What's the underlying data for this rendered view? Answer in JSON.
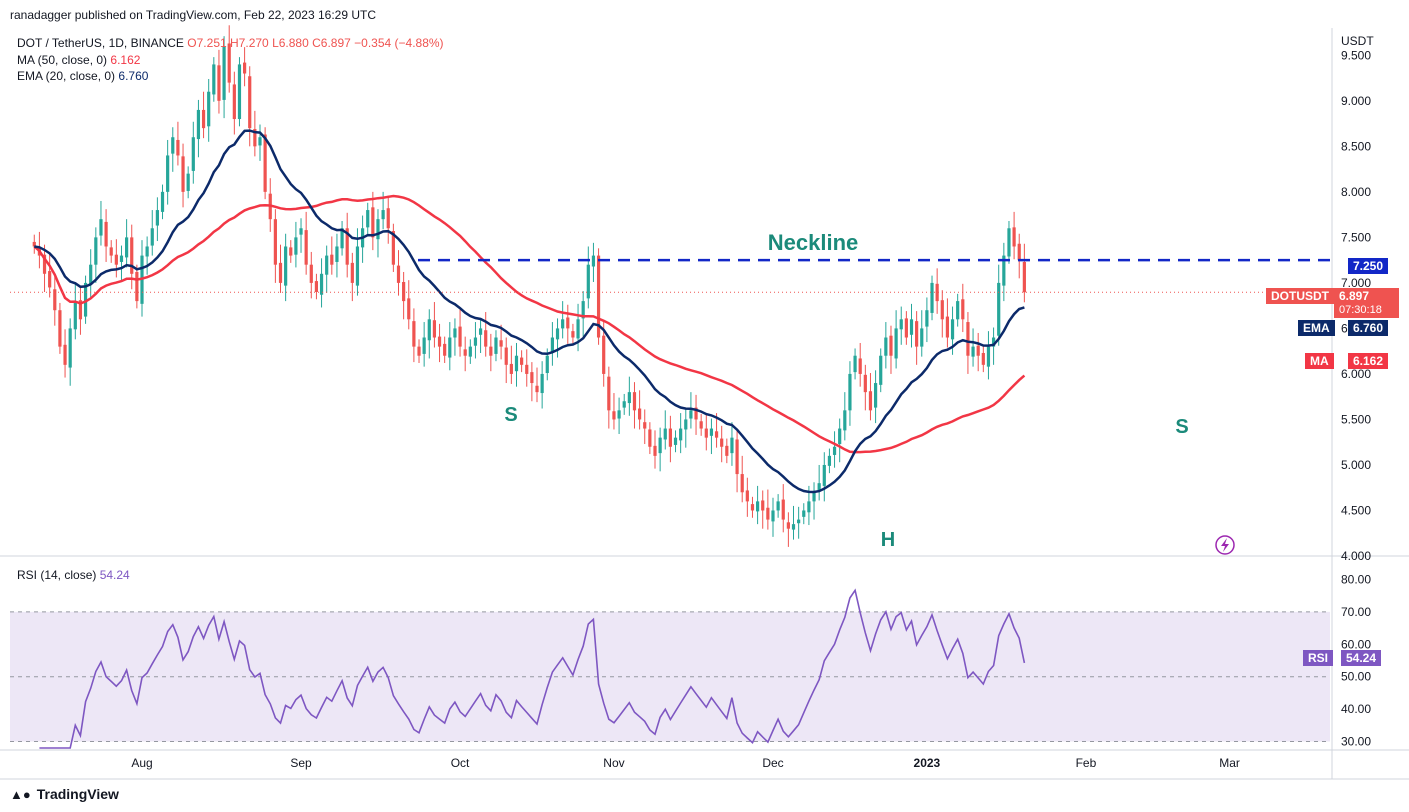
{
  "publish_line": "ranadagger published on TradingView.com, Feb 22, 2023 16:29 UTC",
  "ticker": {
    "symbol": "DOT / TetherUS, 1D, BINANCE",
    "open": "O7.251",
    "high": "H7.270",
    "low": "L6.880",
    "close": "C6.897",
    "change": "−0.354 (−4.88%)"
  },
  "ma_legend": {
    "label": "MA (50, close, 0)",
    "value": "6.162"
  },
  "ema_legend": {
    "label": "EMA (20, close, 0)",
    "value": "6.760"
  },
  "rsi_legend": {
    "label": "RSI (14, close)",
    "value": "54.24"
  },
  "currency": "USDT",
  "footer": {
    "brand": "TradingView"
  },
  "colors": {
    "up": "#26a69a",
    "down": "#ef5350",
    "ma": "#f23645",
    "ema": "#0c2a6a",
    "rsi": "#7e57c2",
    "band": "#ede7f6",
    "neckline": "#1227c7",
    "annot": "#1b8a7a"
  },
  "price_labels": {
    "neckline": "7.250",
    "current": {
      "symbol": "DOTUSDT",
      "price": "6.897",
      "timer": "07:30:18"
    },
    "ema": {
      "name": "EMA",
      "value": "6.760"
    },
    "ma": {
      "name": "MA",
      "value": "6.162"
    },
    "rsi": {
      "name": "RSI",
      "value": "54.24"
    }
  },
  "annotations": {
    "neckline": "Neckline",
    "left_shoulder": "S",
    "head": "H",
    "right_shoulder": "S"
  },
  "chart_data": {
    "type": "candlestick",
    "ylim": [
      4.0,
      9.8
    ],
    "yticks": [
      "9.500",
      "9.000",
      "8.500",
      "8.000",
      "7.500",
      "7.000",
      "6.500",
      "6.000",
      "5.500",
      "5.000",
      "4.500",
      "4.000"
    ],
    "ytick_values": [
      9.5,
      9.0,
      8.5,
      8.0,
      7.5,
      7.0,
      6.5,
      6.0,
      5.5,
      5.0,
      4.5,
      4.0
    ],
    "xtick_labels": [
      "Aug",
      "Sep",
      "Oct",
      "Nov",
      "Dec",
      "2023",
      "Feb",
      "Mar"
    ],
    "xtick_days": [
      0,
      31,
      62,
      92,
      123,
      153,
      184,
      212
    ],
    "first_candle_day": -21,
    "neckline_level": 7.25,
    "closes": [
      7.4,
      7.3,
      7.1,
      6.95,
      6.7,
      6.3,
      6.1,
      6.5,
      6.8,
      6.6,
      7.0,
      7.2,
      7.5,
      7.7,
      7.4,
      7.3,
      7.2,
      7.3,
      7.5,
      7.1,
      6.8,
      7.3,
      7.4,
      7.6,
      7.8,
      8.0,
      8.4,
      8.6,
      8.4,
      8.0,
      8.2,
      8.6,
      8.9,
      8.7,
      9.1,
      9.4,
      9.0,
      9.6,
      9.2,
      8.8,
      9.4,
      9.3,
      8.7,
      8.5,
      8.6,
      8.0,
      7.7,
      7.2,
      7.0,
      7.4,
      7.3,
      7.5,
      7.6,
      7.2,
      7.0,
      6.9,
      7.1,
      7.3,
      7.2,
      7.4,
      7.6,
      7.2,
      7.0,
      7.4,
      7.6,
      7.8,
      7.5,
      7.7,
      7.8,
      7.6,
      7.2,
      7.0,
      6.8,
      6.6,
      6.3,
      6.2,
      6.4,
      6.6,
      6.4,
      6.3,
      6.2,
      6.4,
      6.5,
      6.3,
      6.2,
      6.3,
      6.4,
      6.5,
      6.3,
      6.2,
      6.4,
      6.3,
      6.1,
      6.0,
      6.2,
      6.1,
      6.0,
      5.9,
      5.8,
      6.0,
      6.2,
      6.4,
      6.5,
      6.6,
      6.5,
      6.4,
      6.6,
      6.8,
      7.2,
      7.3,
      6.4,
      6.0,
      5.6,
      5.5,
      5.6,
      5.7,
      5.8,
      5.6,
      5.5,
      5.4,
      5.2,
      5.1,
      5.3,
      5.4,
      5.2,
      5.3,
      5.4,
      5.5,
      5.6,
      5.5,
      5.4,
      5.3,
      5.4,
      5.3,
      5.2,
      5.1,
      5.3,
      4.9,
      4.7,
      4.6,
      4.5,
      4.6,
      4.5,
      4.4,
      4.5,
      4.6,
      4.4,
      4.3,
      4.35,
      4.4,
      4.5,
      4.6,
      4.7,
      4.8,
      5.0,
      5.1,
      5.2,
      5.4,
      5.6,
      6.0,
      6.2,
      6.0,
      5.8,
      5.6,
      5.9,
      6.2,
      6.4,
      6.2,
      6.5,
      6.6,
      6.4,
      6.6,
      6.3,
      6.5,
      6.7,
      7.0,
      6.8,
      6.6,
      6.4,
      6.6,
      6.8,
      6.6,
      6.2,
      6.3,
      6.2,
      6.1,
      6.3,
      6.4,
      7.0,
      7.3,
      7.6,
      7.4,
      7.25,
      6.897
    ],
    "ma50_end": 6.162,
    "ema20_end": 6.76,
    "rsi": {
      "ylim": [
        28,
        86
      ],
      "yticks": [
        "80.00",
        "70.00",
        "60.00",
        "50.00",
        "40.00",
        "30.00"
      ],
      "ytick_values": [
        80,
        70,
        60,
        50,
        40,
        30
      ],
      "band": [
        30,
        70
      ],
      "mid": 50,
      "last": 54.24
    }
  }
}
